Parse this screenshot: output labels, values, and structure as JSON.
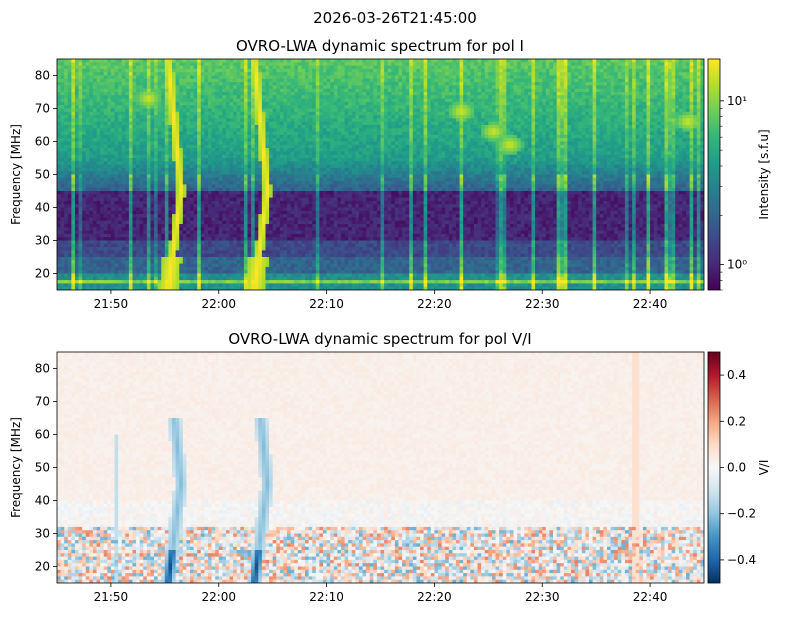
{
  "figure": {
    "suptitle": "2026-03-26T21:45:00"
  },
  "colormaps": {
    "viridis": [
      "#440154",
      "#482878",
      "#3e4989",
      "#31688e",
      "#26828e",
      "#1f9e89",
      "#35b779",
      "#6ece58",
      "#b5de2b",
      "#fde725"
    ],
    "rdbu_r": [
      "#053061",
      "#2166ac",
      "#4393c3",
      "#92c5de",
      "#d1e5f0",
      "#f7f7f7",
      "#fddbc7",
      "#f4a582",
      "#d6604d",
      "#b2182b",
      "#67001f"
    ]
  },
  "chart_data": [
    {
      "type": "heatmap",
      "title": "OVRO-LWA dynamic spectrum for pol I",
      "xlabel": "",
      "ylabel": "Frequency [MHz]",
      "xticks": [
        "21:50",
        "22:00",
        "22:10",
        "22:20",
        "22:30",
        "22:40"
      ],
      "xtick_minutes": [
        5,
        15,
        25,
        35,
        45,
        55
      ],
      "xlim_minutes": [
        0,
        60
      ],
      "yticks": [
        20,
        30,
        40,
        50,
        60,
        70,
        80
      ],
      "ylim": [
        15,
        85
      ],
      "colorbar": {
        "label": "Intensity [s.f.u]",
        "scale": "log",
        "range": [
          0.7,
          18
        ],
        "ticks": [
          {
            "label": "10¹",
            "value": 10
          },
          {
            "label": "10⁰",
            "value": 1
          }
        ],
        "colormap": "viridis"
      },
      "features": {
        "type_iii_bursts_minutes": [
          11.5,
          19.5
        ],
        "bright_patches": [
          {
            "minute": 37.5,
            "freq": 69
          },
          {
            "minute": 40.5,
            "freq": 63
          },
          {
            "minute": 42,
            "freq": 59
          },
          {
            "minute": 58.5,
            "freq": 66
          },
          {
            "minute": 8.5,
            "freq": 73
          }
        ]
      }
    },
    {
      "type": "heatmap",
      "title": "OVRO-LWA dynamic spectrum for pol V/I",
      "xlabel": "",
      "ylabel": "Frequency [MHz]",
      "xticks": [
        "21:50",
        "22:00",
        "22:10",
        "22:20",
        "22:30",
        "22:40"
      ],
      "xtick_minutes": [
        5,
        15,
        25,
        35,
        45,
        55
      ],
      "xlim_minutes": [
        0,
        60
      ],
      "yticks": [
        20,
        30,
        40,
        50,
        60,
        70,
        80
      ],
      "ylim": [
        15,
        85
      ],
      "colorbar": {
        "label": "V/I",
        "scale": "linear",
        "range": [
          -0.5,
          0.5
        ],
        "ticks": [
          {
            "label": "0.4",
            "value": 0.4
          },
          {
            "label": "0.2",
            "value": 0.2
          },
          {
            "label": "0.0",
            "value": 0
          },
          {
            "label": "−0.2",
            "value": -0.2
          },
          {
            "label": "−0.4",
            "value": -0.4
          }
        ],
        "colormap": "rdbu_r"
      }
    }
  ]
}
